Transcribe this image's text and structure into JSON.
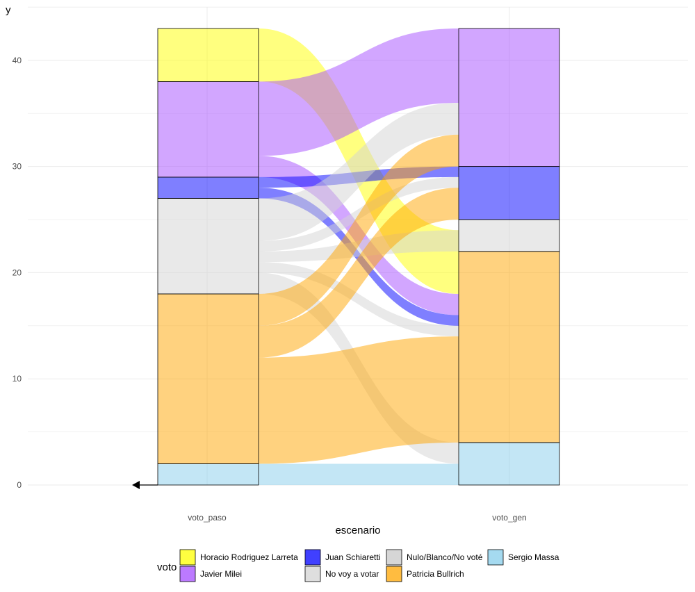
{
  "chart_data": {
    "type": "alluvial",
    "xlabel": "escenario",
    "ylabel": "y",
    "ylim": [
      0,
      43
    ],
    "y_ticks": [
      0,
      10,
      20,
      30,
      40
    ],
    "categories": [
      "voto_paso",
      "voto_gen"
    ],
    "grid": true,
    "legend_position": "bottom",
    "legend": {
      "title": "voto",
      "entries": [
        {
          "label": "Horacio Rodriguez Larreta",
          "color": "#ffff00"
        },
        {
          "label": "Javier Milei",
          "color": "#a64dff"
        },
        {
          "label": "Juan Schiaretti",
          "color": "#0000ff"
        },
        {
          "label": "No voy a votar",
          "color": "#d3d3d3"
        },
        {
          "label": "Nulo/Blanco/No voté",
          "color": "#c8c8c8"
        },
        {
          "label": "Patricia Bullrich",
          "color": "#ffa500"
        },
        {
          "label": "Sergio Massa",
          "color": "#87ceeb"
        }
      ]
    },
    "strata": {
      "voto_paso": [
        {
          "label": "Sergio Massa",
          "value": 2
        },
        {
          "label": "Patricia Bullrich",
          "value": 16
        },
        {
          "label": "No voy a votar",
          "value": 9
        },
        {
          "label": "Juan Schiaretti",
          "value": 2
        },
        {
          "label": "Javier Milei",
          "value": 9
        },
        {
          "label": "Horacio Rodriguez Larreta",
          "value": 5
        }
      ],
      "voto_gen": [
        {
          "label": "Sergio Massa",
          "value": 4
        },
        {
          "label": "Patricia Bullrich",
          "value": 18
        },
        {
          "label": "No voy a votar",
          "value": 3
        },
        {
          "label": "Juan Schiaretti",
          "value": 5
        },
        {
          "label": "Javier Milei",
          "value": 13
        }
      ]
    },
    "flows": [
      {
        "from": "Sergio Massa",
        "to": "Sergio Massa",
        "value": 2
      },
      {
        "from": "Patricia Bullrich",
        "to": "Sergio Massa",
        "value": 0
      },
      {
        "from": "No voy a votar",
        "to": "Sergio Massa",
        "value": 2
      },
      {
        "from": "Patricia Bullrich",
        "to": "Patricia Bullrich",
        "value": 10
      },
      {
        "from": "Patricia Bullrich",
        "to": "No voy a votar",
        "value": 0
      },
      {
        "from": "Horacio Rodriguez Larreta",
        "to": "Patricia Bullrich",
        "value": 4
      },
      {
        "from": "Patricia Bullrich",
        "to": "Javier Milei",
        "value": 0
      },
      {
        "from": "No voy a votar",
        "to": "Patricia Bullrich",
        "value": 2
      },
      {
        "from": "Patricia Bullrich",
        "to": "Juan Schiaretti",
        "value": 0
      },
      {
        "from": "No voy a votar",
        "to": "No voy a votar",
        "value": 1
      },
      {
        "from": "Juan Schiaretti",
        "to": "Juan Schiaretti",
        "value": 1
      },
      {
        "from": "Javier Milei",
        "to": "Javier Milei",
        "value": 7
      },
      {
        "from": "Horacio Rodriguez Larreta",
        "to": "Javier Milei",
        "value": 1
      },
      {
        "from": "Javier Milei",
        "to": "Juan Schiaretti",
        "value": 0
      },
      {
        "from": "No voy a votar",
        "to": "Javier Milei",
        "value": 0
      },
      {
        "from": "Juan Schiaretti",
        "to": "Patricia Bullrich",
        "value": 1
      },
      {
        "from": "Javier Milei",
        "to": "Patricia Bullrich",
        "value": 2
      },
      {
        "from": "Patricia Bullrich",
        "to": "Patricia Bullrich2",
        "value": 6
      },
      {
        "from": "No voy a votar",
        "to": "Juan Schiaretti",
        "value": 0
      },
      {
        "from": "No voy a votar",
        "to": "Javier Milei2",
        "value": 4
      }
    ]
  }
}
